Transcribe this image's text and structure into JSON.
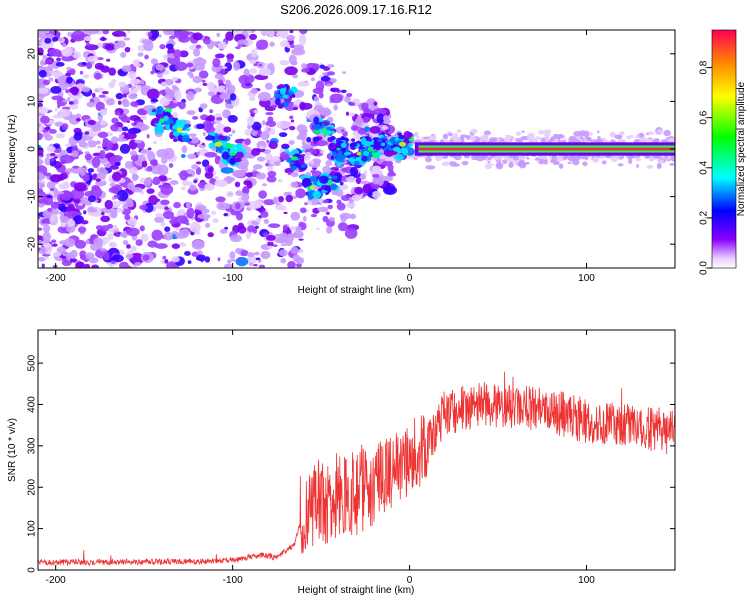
{
  "title": "S206.2026.009.17.16.R12",
  "chart_data": [
    {
      "type": "heatmap",
      "title": "S206.2026.009.17.16.R12",
      "xlabel": "Height of straight line (km)",
      "ylabel": "Frequency (Hz)",
      "xlim": [
        -210,
        150
      ],
      "ylim": [
        -25,
        25
      ],
      "xticks": [
        -200,
        -100,
        0,
        100
      ],
      "yticks": [
        -20,
        -10,
        0,
        10,
        20
      ],
      "colorbar": {
        "label": "Normalized spectral amplitude",
        "range": [
          0,
          0.95
        ],
        "ticks": [
          "0.0",
          "0.2",
          "0.4",
          "0.6",
          "0.8"
        ],
        "tick_values": [
          0.0,
          0.2,
          0.4,
          0.6,
          0.8
        ],
        "colors": [
          "#ffffff",
          "#8a00ff",
          "#0000ff",
          "#00ffff",
          "#00ff00",
          "#ffff00",
          "#ff8800",
          "#ff0055"
        ]
      },
      "features": {
        "carrier_band": {
          "x_start": 5,
          "x_end": 150,
          "frequency": 0,
          "amplitude": 0.9
        },
        "noise_region": {
          "x_start": -210,
          "x_end": -20,
          "amplitude_typical": 0.2
        }
      }
    },
    {
      "type": "line",
      "xlabel": "Height of straight line (km)",
      "ylabel": "SNR (10 * v/v)",
      "xlim": [
        -210,
        150
      ],
      "ylim": [
        0,
        580
      ],
      "xticks": [
        -200,
        -100,
        0,
        100
      ],
      "yticks": [
        0,
        100,
        200,
        300,
        400,
        500
      ],
      "series": [
        {
          "name": "SNR",
          "color": "#ee3333",
          "x": [
            -210,
            -180,
            -150,
            -120,
            -100,
            -85,
            -75,
            -65,
            -60,
            -50,
            -40,
            -30,
            -20,
            -10,
            0,
            10,
            20,
            40,
            60,
            80,
            100,
            120,
            140,
            150
          ],
          "values": [
            18,
            18,
            19,
            20,
            22,
            35,
            30,
            60,
            150,
            170,
            175,
            190,
            215,
            240,
            265,
            310,
            380,
            400,
            395,
            385,
            360,
            350,
            340,
            330
          ]
        }
      ]
    }
  ]
}
